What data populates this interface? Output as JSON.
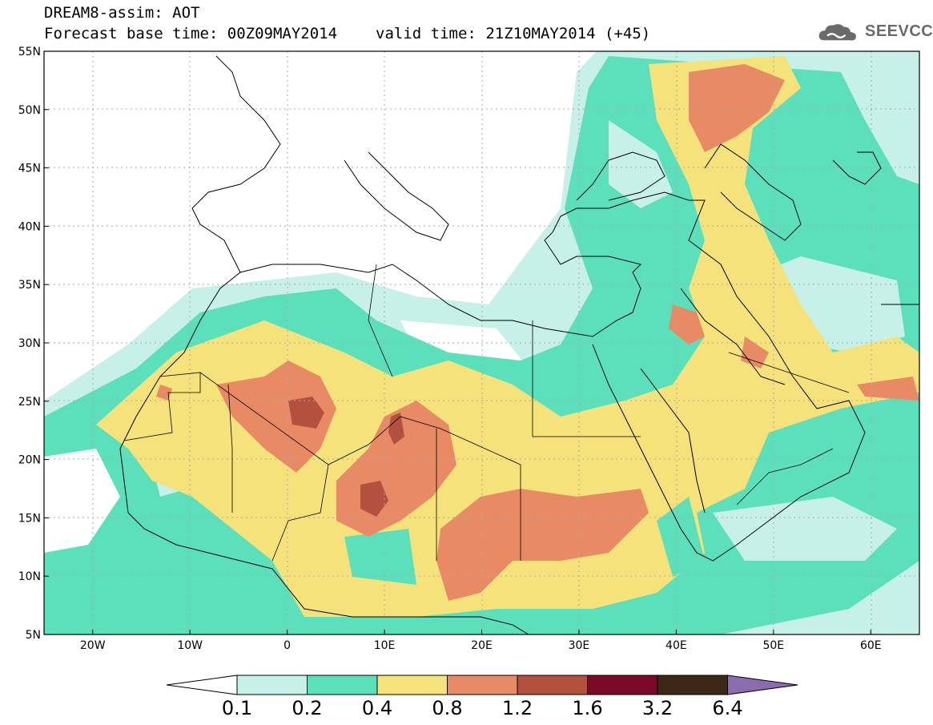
{
  "header": {
    "line1": "DREAM8-assim: AOT",
    "base_time": "Forecast base time: 00Z09MAY2014",
    "valid_time": "valid time: 21Z10MAY2014 (+45)"
  },
  "logo": {
    "text": "SEEVCCC",
    "icon": "cloud-icon"
  },
  "map": {
    "projection": "lat-lon",
    "lon_range": [
      -25,
      65
    ],
    "lat_range": [
      5,
      55
    ],
    "lat_ticks": [
      "55N",
      "50N",
      "45N",
      "40N",
      "35N",
      "30N",
      "25N",
      "20N",
      "15N",
      "10N",
      "5N"
    ],
    "lon_ticks": [
      "20W",
      "10W",
      "0",
      "10E",
      "20E",
      "30E",
      "40E",
      "50E",
      "60E"
    ],
    "gridlines": true
  },
  "colorbar": {
    "labels": [
      "0.1",
      "0.2",
      "0.4",
      "0.8",
      "1.2",
      "1.6",
      "3.2",
      "6.4"
    ],
    "colors": [
      "#ffffff",
      "#c6f0e8",
      "#5ce0bc",
      "#f6e27a",
      "#e88a64",
      "#b4503e",
      "#7a0a28",
      "#3c2814",
      "#8c6cb0"
    ]
  }
}
